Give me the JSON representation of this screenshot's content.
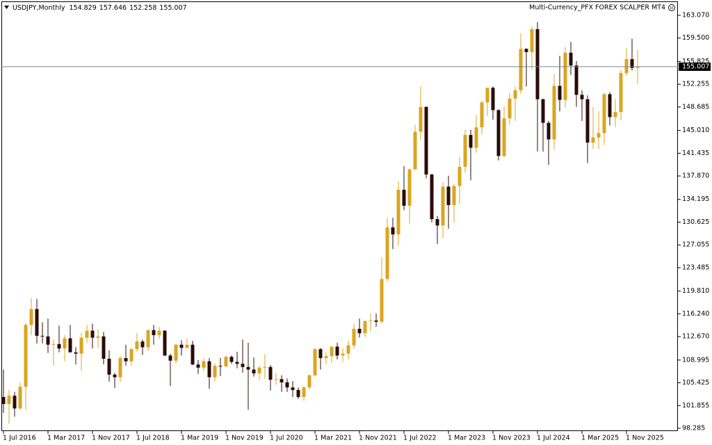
{
  "chart_data": {
    "type": "candlestick",
    "symbol": "USDJPY,Monthly",
    "indicator_label": "Multi-Currency_PFX FOREX SCALPER MT4",
    "up_color": "#daa520",
    "down_color": "#2a0c08",
    "price_line_color": "#778899",
    "categories": [
      "1 Jul 2016",
      null,
      null,
      null,
      null,
      null,
      null,
      null,
      "1 Mar 2017",
      null,
      null,
      null,
      null,
      null,
      null,
      null,
      "1 Nov 2017",
      null,
      null,
      null,
      null,
      null,
      null,
      null,
      "1 Jul 2018",
      null,
      null,
      null,
      null,
      null,
      null,
      null,
      "1 Mar 2019",
      null,
      null,
      null,
      null,
      null,
      null,
      null,
      "1 Nov 2019",
      null,
      null,
      null,
      null,
      null,
      null,
      null,
      "1 Jul 2020",
      null,
      null,
      null,
      null,
      null,
      null,
      null,
      "1 Mar 2021",
      null,
      null,
      null,
      null,
      null,
      null,
      null,
      "1 Nov 2021",
      null,
      null,
      null,
      null,
      null,
      null,
      null,
      "1 Jul 2022",
      null,
      null,
      null,
      null,
      null,
      null,
      null,
      "1 Mar 2023",
      null,
      null,
      null,
      null,
      null,
      null,
      null,
      "1 Nov 2023",
      null,
      null,
      null,
      null,
      null,
      null,
      null,
      "1 Jul 2024",
      null,
      null,
      null,
      null,
      null,
      null,
      null,
      "1 Mar 2025",
      null,
      null,
      null,
      null,
      null,
      null,
      null,
      "1 Nov 2025",
      null,
      null
    ],
    "open": [
      103.2,
      102.1,
      103.4,
      101.4,
      104.8,
      114.5,
      117.0,
      112.8,
      112.7,
      111.4,
      111.5,
      110.8,
      112.4,
      110.2,
      110.0,
      112.5,
      113.6,
      112.5,
      112.7,
      109.2,
      106.7,
      106.3,
      109.3,
      108.8,
      110.7,
      111.9,
      111.0,
      113.7,
      112.9,
      113.6,
      109.7,
      108.9,
      111.4,
      110.9,
      111.4,
      108.3,
      107.8,
      108.8,
      106.3,
      108.1,
      108.0,
      109.5,
      108.7,
      108.4,
      107.9,
      107.5,
      106.9,
      107.8,
      107.9,
      105.9,
      106.0,
      105.5,
      104.7,
      104.3,
      103.2,
      104.7,
      106.6,
      110.7,
      109.3,
      109.6,
      111.1,
      109.7,
      110.0,
      111.3,
      113.9,
      113.2,
      115.1,
      115.2,
      115.0,
      121.7,
      129.8,
      128.7,
      135.7,
      133.2,
      138.9,
      144.8,
      148.7,
      138.1,
      131.1,
      130.1,
      136.2,
      133.3,
      136.3,
      139.3,
      144.3,
      142.3,
      145.5,
      149.4,
      151.7,
      148.2,
      141.0,
      146.9,
      150.0,
      151.3,
      157.8,
      157.3,
      160.9,
      149.9,
      146.2,
      143.6,
      152.0,
      149.8,
      157.2,
      155.2,
      150.6,
      149.9,
      143.1,
      143.9,
      144.6,
      150.7,
      147.1,
      147.9,
      154.0,
      156.2,
      154.829
    ],
    "high": [
      107.5,
      104.3,
      104.0,
      105.5,
      114.8,
      118.7,
      118.6,
      114.9,
      115.5,
      112.2,
      114.4,
      112.9,
      114.5,
      111.0,
      113.3,
      114.5,
      114.7,
      113.8,
      113.4,
      110.5,
      107.0,
      109.6,
      111.4,
      111.0,
      113.2,
      112.2,
      113.7,
      114.5,
      114.2,
      113.7,
      110.0,
      111.5,
      112.1,
      112.4,
      112.0,
      109.0,
      109.3,
      109.3,
      108.5,
      109.3,
      109.7,
      109.7,
      110.3,
      112.2,
      111.7,
      109.4,
      108.1,
      109.9,
      108.2,
      107.0,
      106.6,
      106.1,
      105.7,
      104.7,
      104.9,
      106.7,
      110.9,
      110.9,
      110.2,
      111.1,
      111.7,
      110.8,
      112.1,
      114.7,
      115.5,
      115.2,
      116.3,
      116.3,
      125.1,
      131.3,
      131.3,
      137.0,
      139.4,
      139.1,
      145.9,
      151.9,
      148.8,
      138.2,
      131.6,
      136.9,
      137.9,
      136.6,
      140.9,
      145.1,
      145.1,
      147.4,
      149.7,
      151.7,
      151.9,
      148.3,
      148.8,
      150.9,
      151.9,
      160.2,
      157.9,
      161.3,
      162.0,
      150.0,
      146.5,
      153.9,
      156.7,
      158.1,
      158.9,
      155.9,
      151.3,
      150.5,
      148.7,
      148.0,
      150.9,
      151.0,
      149.9,
      154.5,
      157.9,
      159.4,
      157.646
    ],
    "low": [
      100.7,
      99.0,
      100.1,
      101.2,
      101.2,
      112.9,
      111.6,
      111.6,
      110.1,
      108.1,
      110.2,
      108.8,
      110.6,
      108.3,
      107.3,
      111.7,
      110.8,
      110.9,
      108.3,
      105.6,
      104.6,
      105.6,
      108.1,
      108.1,
      110.3,
      109.8,
      110.4,
      111.4,
      112.3,
      109.6,
      104.9,
      108.5,
      109.7,
      110.8,
      108.2,
      106.8,
      107.2,
      104.5,
      105.7,
      106.5,
      107.9,
      108.4,
      107.7,
      107.0,
      101.2,
      106.4,
      105.9,
      106.1,
      104.2,
      105.1,
      104.0,
      104.0,
      103.2,
      102.9,
      102.6,
      104.4,
      106.4,
      107.5,
      108.3,
      108.6,
      109.1,
      108.7,
      109.1,
      110.8,
      112.5,
      112.6,
      113.5,
      114.2,
      114.7,
      121.3,
      126.4,
      126.9,
      132.5,
      130.4,
      138.8,
      143.5,
      137.5,
      130.6,
      127.2,
      128.1,
      129.6,
      130.6,
      133.5,
      138.4,
      137.2,
      141.5,
      144.4,
      147.3,
      146.7,
      140.3,
      140.8,
      145.9,
      146.5,
      150.8,
      151.9,
      154.5,
      141.7,
      141.7,
      139.6,
      142.0,
      148.0,
      148.6,
      153.7,
      148.7,
      146.5,
      139.9,
      142.1,
      142.1,
      142.7,
      145.8,
      145.5,
      146.6,
      153.6,
      154.4,
      152.258
    ],
    "close": [
      102.1,
      103.4,
      101.4,
      104.8,
      114.5,
      117.0,
      112.8,
      112.7,
      111.4,
      111.5,
      110.8,
      112.4,
      110.2,
      110.0,
      112.5,
      113.6,
      112.5,
      112.7,
      109.2,
      106.7,
      106.3,
      109.3,
      108.8,
      110.7,
      111.9,
      111.0,
      113.7,
      112.9,
      113.6,
      109.7,
      108.9,
      111.4,
      110.9,
      111.4,
      108.3,
      107.8,
      108.8,
      106.3,
      108.1,
      108.0,
      109.5,
      108.7,
      108.4,
      107.9,
      107.5,
      106.9,
      107.8,
      107.9,
      105.9,
      106.0,
      105.5,
      104.7,
      104.3,
      103.2,
      104.7,
      106.6,
      110.7,
      109.3,
      109.6,
      111.1,
      109.7,
      110.0,
      111.3,
      113.9,
      113.2,
      115.1,
      115.2,
      115.0,
      121.7,
      129.8,
      128.7,
      135.7,
      133.2,
      138.9,
      144.8,
      148.7,
      138.1,
      131.1,
      130.1,
      136.2,
      133.3,
      136.3,
      139.3,
      144.3,
      142.3,
      145.5,
      149.4,
      151.7,
      148.2,
      141.0,
      146.9,
      150.0,
      151.3,
      157.8,
      157.3,
      160.9,
      149.9,
      146.2,
      143.6,
      152.0,
      149.8,
      157.2,
      155.2,
      150.6,
      149.9,
      143.1,
      143.9,
      144.6,
      150.7,
      147.1,
      147.9,
      154.0,
      156.2,
      154.8,
      155.007
    ],
    "ylim": [
      97.85,
      165.25
    ],
    "yticks": [
      {
        "value": 163.07,
        "label": "163.070"
      },
      {
        "value": 159.5,
        "label": "159.500"
      },
      155.825,
      152.255,
      148.685,
      {
        "value": 145.01,
        "label": "145.010"
      },
      141.435,
      {
        "value": 137.87,
        "label": "137.870"
      },
      134.195,
      130.625,
      127.055,
      123.485,
      {
        "value": 119.81,
        "label": "119.810"
      },
      {
        "value": 116.24,
        "label": "116.240"
      },
      {
        "value": 112.67,
        "label": "112.670"
      },
      108.995,
      105.425,
      101.855,
      98.285
    ]
  }
}
